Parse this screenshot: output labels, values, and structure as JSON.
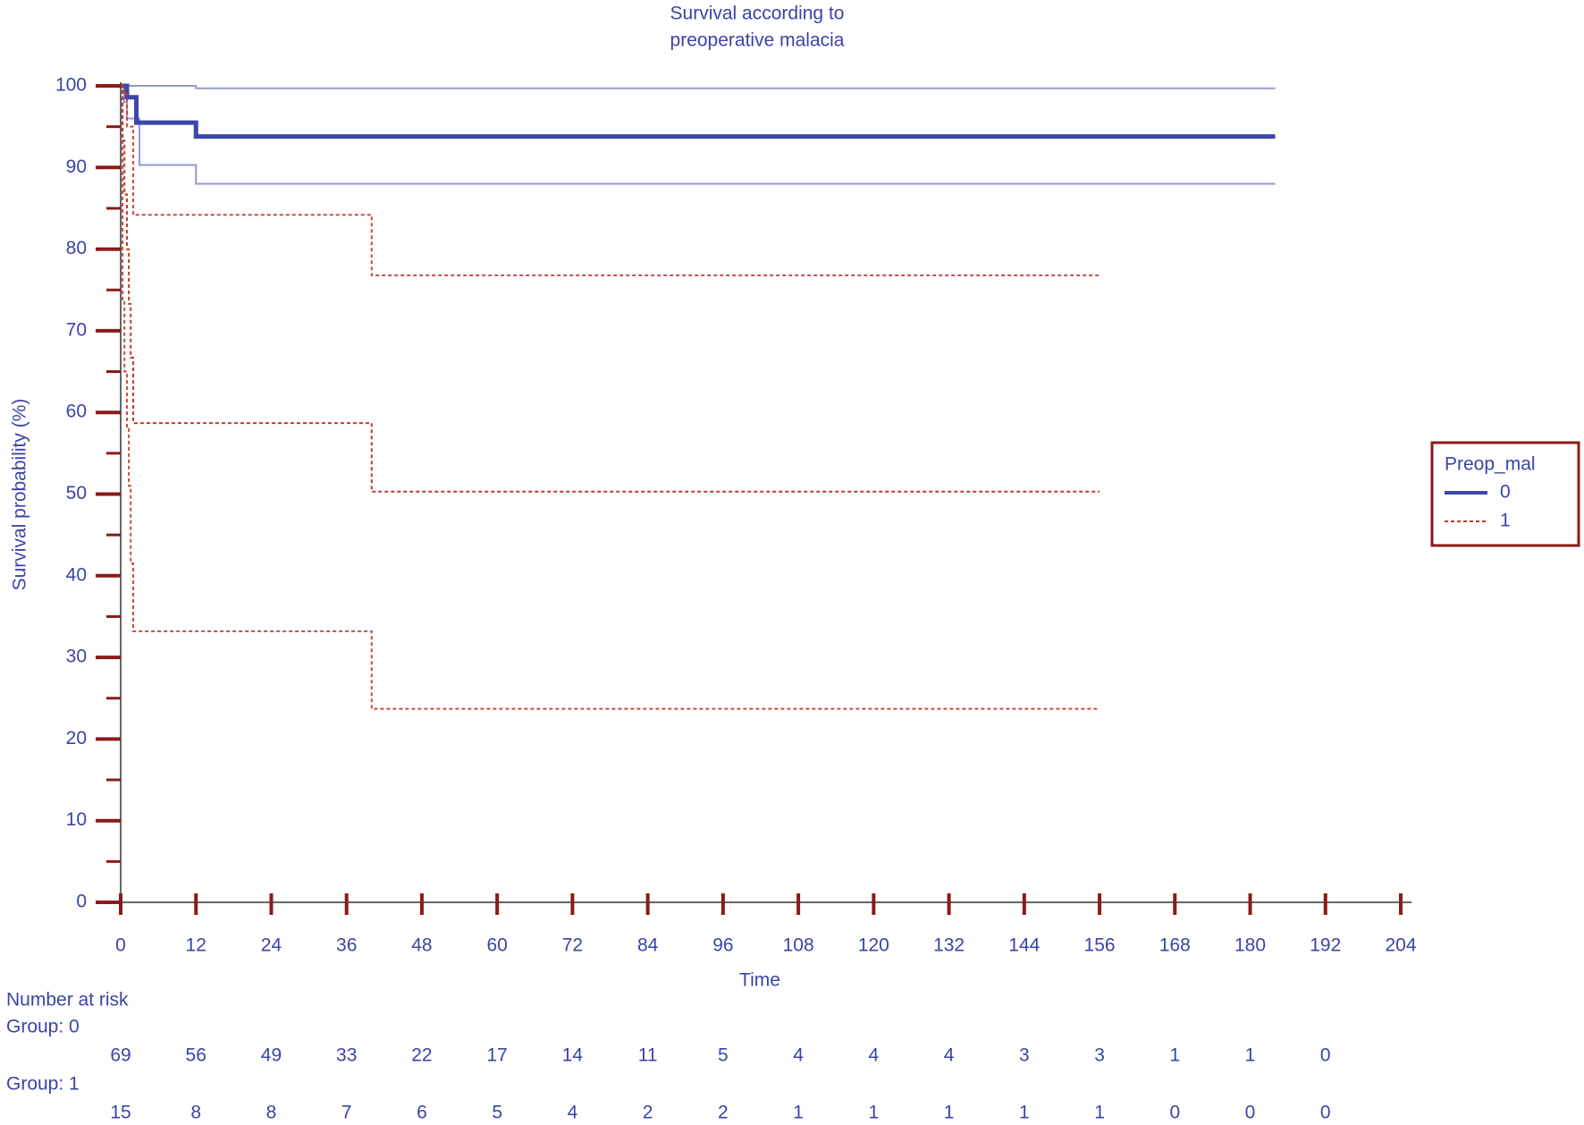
{
  "chart_data": {
    "type": "km",
    "title": [
      "Survival according to",
      "preoperative malacia"
    ],
    "x_label": "Time",
    "y_label": "Survival probability (%)",
    "xlim": [
      0,
      204
    ],
    "ylim": [
      0,
      100
    ],
    "xticks": [
      0,
      12,
      24,
      36,
      48,
      60,
      72,
      84,
      96,
      108,
      120,
      132,
      144,
      156,
      168,
      180,
      192,
      204
    ],
    "yticks": [
      0,
      10,
      20,
      30,
      40,
      50,
      60,
      70,
      80,
      90,
      100
    ],
    "yminorticks": [
      5,
      15,
      25,
      35,
      45,
      55,
      65,
      75,
      85,
      95
    ],
    "legend_title": "Preop_mal",
    "legend": "right",
    "series": [
      {
        "name": "0",
        "color": "#3d47a8",
        "style": "solid",
        "x": [
          0,
          1,
          2.5,
          12,
          184
        ],
        "values": [
          100,
          98.6,
          95.5,
          93.8,
          93.8
        ],
        "ci_upper": {
          "x": [
            0,
            12,
            184
          ],
          "values": [
            100,
            99.7,
            99.7
          ]
        },
        "ci_lower": {
          "x": [
            0,
            0.5,
            1,
            3,
            12,
            184
          ],
          "values": [
            100,
            98,
            96,
            90.3,
            88,
            88
          ]
        }
      },
      {
        "name": "1",
        "color": "#c0392b",
        "style": "dotted",
        "x": [
          0,
          0.3,
          0.6,
          1,
          1.3,
          1.6,
          2,
          40,
          156
        ],
        "values": [
          100,
          93.3,
          86.7,
          80,
          73.3,
          66.7,
          58.7,
          50.3,
          50.3
        ],
        "ci_upper": {
          "x": [
            0,
            0.5,
            1,
            2,
            40,
            156
          ],
          "values": [
            100,
            99,
            95,
            84.2,
            76.8,
            76.8
          ]
        },
        "ci_lower": {
          "x": [
            0,
            0.3,
            0.6,
            1,
            1.3,
            1.6,
            2,
            40,
            156
          ],
          "values": [
            100,
            73.5,
            65,
            58,
            51,
            41.5,
            33.2,
            23.7,
            23.7
          ]
        }
      }
    ],
    "risk_table": {
      "title": "Number at risk",
      "x": [
        0,
        12,
        24,
        36,
        48,
        60,
        72,
        84,
        96,
        108,
        120,
        132,
        144,
        156,
        168,
        180,
        192
      ],
      "groups": [
        {
          "label": "Group: 0",
          "values": [
            69,
            56,
            49,
            33,
            22,
            17,
            14,
            11,
            5,
            4,
            4,
            4,
            3,
            3,
            1,
            1,
            0
          ]
        },
        {
          "label": "Group: 1",
          "values": [
            15,
            8,
            8,
            7,
            6,
            5,
            4,
            2,
            2,
            1,
            1,
            1,
            1,
            1,
            0,
            0,
            0
          ]
        }
      ]
    }
  }
}
